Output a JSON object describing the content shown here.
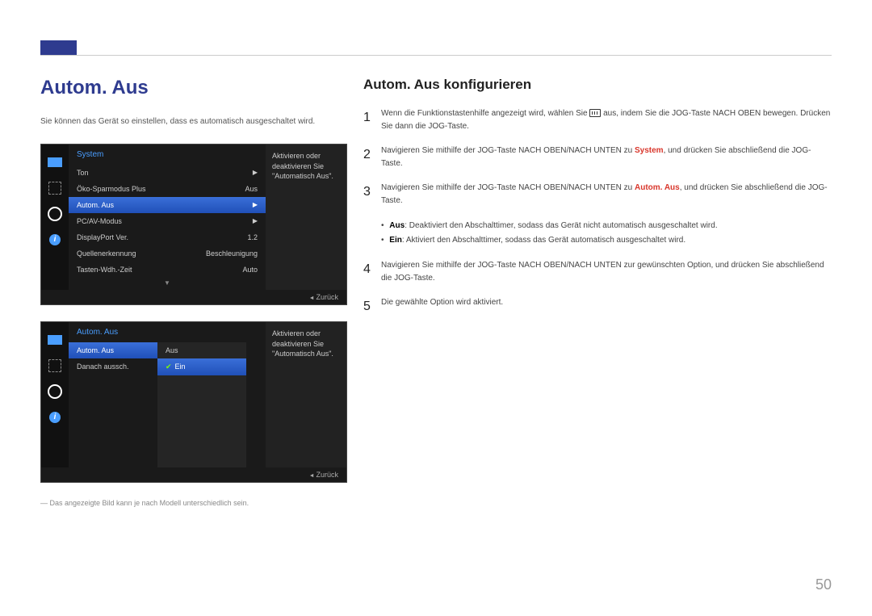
{
  "page": {
    "number": "50"
  },
  "left": {
    "title": "Autom. Aus",
    "intro": "Sie können das Gerät so einstellen, dass es automatisch ausgeschaltet wird.",
    "disclaimer": "― Das angezeigte Bild kann je nach Modell unterschiedlich sein."
  },
  "right": {
    "title": "Autom. Aus konfigurieren",
    "steps": {
      "s1": {
        "n": "1",
        "a": "Wenn die Funktionstastenhilfe angezeigt wird, wählen Sie ",
        "b": " aus, indem Sie die JOG-Taste NACH OBEN bewegen. Drücken Sie dann die JOG-Taste."
      },
      "s2": {
        "n": "2",
        "a": "Navigieren Sie mithilfe der JOG-Taste NACH OBEN/NACH UNTEN zu ",
        "hl": "System",
        "b": ", und drücken Sie abschließend die JOG-Taste."
      },
      "s3": {
        "n": "3",
        "a": "Navigieren Sie mithilfe der JOG-Taste NACH OBEN/NACH UNTEN zu ",
        "hl": "Autom. Aus",
        "b": ", und drücken Sie abschließend die JOG-Taste."
      },
      "s4": {
        "n": "4",
        "a": "Navigieren Sie mithilfe der JOG-Taste NACH OBEN/NACH UNTEN zur gewünschten Option, und drücken Sie abschließend die JOG-Taste."
      },
      "s5": {
        "n": "5",
        "a": "Die gewählte Option wird aktiviert."
      }
    },
    "bullets": {
      "b1": {
        "hl": "Aus",
        "t": ": Deaktiviert den Abschalttimer, sodass das Gerät nicht automatisch ausgeschaltet wird."
      },
      "b2": {
        "hl": "Ein",
        "t": ": Aktiviert den Abschalttimer, sodass das Gerät automatisch ausgeschaltet wird."
      }
    }
  },
  "osd1": {
    "header": "System",
    "rows": {
      "r1": {
        "label": "Ton",
        "val": "▶"
      },
      "r2": {
        "label": "Öko-Sparmodus Plus",
        "val": "Aus"
      },
      "r3": {
        "label": "Autom. Aus",
        "val": "▶"
      },
      "r4": {
        "label": "PC/AV-Modus",
        "val": "▶"
      },
      "r5": {
        "label": "DisplayPort Ver.",
        "val": "1.2"
      },
      "r6": {
        "label": "Quellenerkennung",
        "val": "Beschleunigung"
      },
      "r7": {
        "label": "Tasten-Wdh.-Zeit",
        "val": "Auto"
      }
    },
    "help": "Aktivieren oder deaktivieren Sie \"Automatisch Aus\".",
    "back": "Zurück"
  },
  "osd2": {
    "header": "Autom. Aus",
    "colA": {
      "r1": "Autom. Aus",
      "r2": "Danach aussch."
    },
    "colB": {
      "r1": "Aus",
      "r2": "Ein"
    },
    "help": "Aktivieren oder deaktivieren Sie \"Automatisch Aus\".",
    "back": "Zurück"
  },
  "colors": {
    "accent": "#2e3b8f",
    "highlight_red": "#d9372c",
    "osd_blue": "#4a9eff",
    "osd_sel": "#2050b8"
  }
}
